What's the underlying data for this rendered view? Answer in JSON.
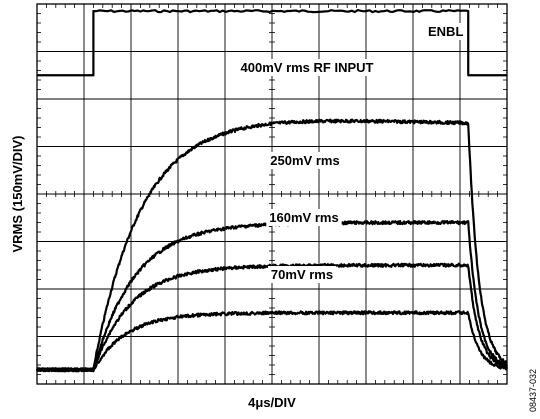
{
  "chart_data": {
    "type": "line",
    "xlabel": "4μs/DIV",
    "ylabel": "VRMS (150mV/DIV)",
    "figure_id": "08437-032",
    "x_divisions": 10,
    "y_divisions": 8,
    "x_unit": "μs",
    "x_per_div": 4,
    "y_per_div_mV": 150,
    "x_range_us": [
      0,
      40
    ],
    "grid": true,
    "enable_signal": {
      "name": "ENBL",
      "low_div": 6.5,
      "high_div": 7.85,
      "rise_us": 4.8,
      "fall_us": 36.7
    },
    "series": [
      {
        "name": "400mV rms RF INPUT",
        "baseline_div": 0.3,
        "settled_div": 5.6,
        "tau_us": 4.0,
        "rise_start_us": 4.8,
        "drop_start_us": 36.7
      },
      {
        "name": "250mV rms",
        "baseline_div": 0.3,
        "settled_div": 3.4,
        "tau_us": 3.5,
        "rise_start_us": 4.8,
        "drop_start_us": 36.7
      },
      {
        "name": "160mV rms",
        "baseline_div": 0.3,
        "settled_div": 2.5,
        "tau_us": 3.2,
        "rise_start_us": 4.8,
        "drop_start_us": 36.7
      },
      {
        "name": "70mV rms",
        "baseline_div": 0.3,
        "settled_div": 1.5,
        "tau_us": 2.8,
        "rise_start_us": 4.8,
        "drop_start_us": 36.7
      }
    ]
  }
}
